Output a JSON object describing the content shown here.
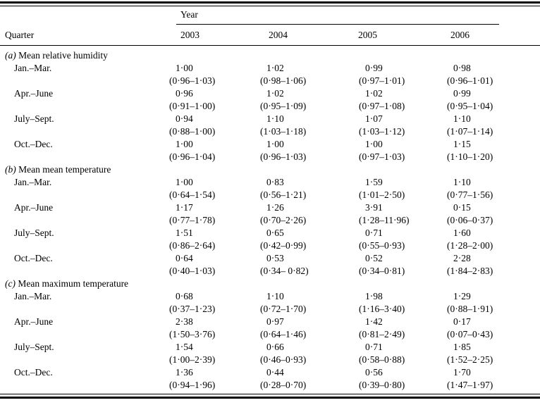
{
  "colors": {
    "text": "#000000",
    "background": "#ffffff",
    "rule": "#000000"
  },
  "header": {
    "year_label": "Year",
    "quarter_label": "Quarter",
    "years": [
      "2003",
      "2004",
      "2005",
      "2006"
    ]
  },
  "sections": [
    {
      "label": "(a)",
      "title": "Mean relative humidity",
      "rows": [
        {
          "quarter": "Jan.–Mar.",
          "cells": [
            {
              "value": "1·00",
              "ci": "(0·96–1·03)"
            },
            {
              "value": "1·02",
              "ci": "(0·98–1·06)"
            },
            {
              "value": "0·99",
              "ci": "(0·97–1·01)"
            },
            {
              "value": "0·98",
              "ci": "(0·96–1·01)"
            }
          ]
        },
        {
          "quarter": "Apr.–June",
          "cells": [
            {
              "value": "0·96",
              "ci": "(0·91–1·00)"
            },
            {
              "value": "1·02",
              "ci": "(0·95–1·09)"
            },
            {
              "value": "1·02",
              "ci": "(0·97–1·08)"
            },
            {
              "value": "0·99",
              "ci": "(0·95–1·04)"
            }
          ]
        },
        {
          "quarter": "July–Sept.",
          "cells": [
            {
              "value": "0·94",
              "ci": "(0·88–1·00)"
            },
            {
              "value": "1·10",
              "ci": "(1·03–1·18)"
            },
            {
              "value": "1·07",
              "ci": "(1·03–1·12)"
            },
            {
              "value": "1·10",
              "ci": "(1·07–1·14)"
            }
          ]
        },
        {
          "quarter": "Oct.–Dec.",
          "cells": [
            {
              "value": "1·00",
              "ci": "(0·96–1·04)"
            },
            {
              "value": "1·00",
              "ci": "(0·96–1·03)"
            },
            {
              "value": "1·00",
              "ci": "(0·97–1·03)"
            },
            {
              "value": "1·15",
              "ci": "(1·10–1·20)"
            }
          ]
        }
      ]
    },
    {
      "label": "(b)",
      "title": "Mean mean temperature",
      "rows": [
        {
          "quarter": "Jan.–Mar.",
          "cells": [
            {
              "value": "1·00",
              "ci": "(0·64–1·54)"
            },
            {
              "value": "0·83",
              "ci": "(0·56–1·21)"
            },
            {
              "value": "1·59",
              "ci": "(1·01–2·50)"
            },
            {
              "value": "1·10",
              "ci": "(0·77–1·56)"
            }
          ]
        },
        {
          "quarter": "Apr.–June",
          "cells": [
            {
              "value": "1·17",
              "ci": "(0·77–1·78)"
            },
            {
              "value": "1·26",
              "ci": "(0·70–2·26)"
            },
            {
              "value": "3·91",
              "ci": "(1·28–11·96)"
            },
            {
              "value": "0·15",
              "ci": "(0·06–0·37)"
            }
          ]
        },
        {
          "quarter": "July–Sept.",
          "cells": [
            {
              "value": "1·51",
              "ci": "(0·86–2·64)"
            },
            {
              "value": "0·65",
              "ci": "(0·42–0·99)"
            },
            {
              "value": "0·71",
              "ci": "(0·55–0·93)"
            },
            {
              "value": "1·60",
              "ci": "(1·28–2·00)"
            }
          ]
        },
        {
          "quarter": "Oct.–Dec.",
          "cells": [
            {
              "value": "0·64",
              "ci": "(0·40–1·03)"
            },
            {
              "value": "0·53",
              "ci": "(0·34– 0·82)"
            },
            {
              "value": "0·52",
              "ci": "(0·34–0·81)"
            },
            {
              "value": "2·28",
              "ci": "(1·84–2·83)"
            }
          ]
        }
      ]
    },
    {
      "label": "(c)",
      "title": "Mean maximum temperature",
      "rows": [
        {
          "quarter": "Jan.–Mar.",
          "cells": [
            {
              "value": "0·68",
              "ci": "(0·37–1·23)"
            },
            {
              "value": "1·10",
              "ci": "(0·72–1·70)"
            },
            {
              "value": "1·98",
              "ci": "(1·16–3·40)"
            },
            {
              "value": "1·29",
              "ci": "(0·88–1·91)"
            }
          ]
        },
        {
          "quarter": "Apr.–June",
          "cells": [
            {
              "value": "2·38",
              "ci": "(1·50–3·76)"
            },
            {
              "value": "0·97",
              "ci": "(0·64–1·46)"
            },
            {
              "value": "1·42",
              "ci": "(0·81–2·49)"
            },
            {
              "value": "0·17",
              "ci": "(0·07–0·43)"
            }
          ]
        },
        {
          "quarter": "July–Sept.",
          "cells": [
            {
              "value": "1·54",
              "ci": "(1·00–2·39)"
            },
            {
              "value": "0·66",
              "ci": "(0·46–0·93)"
            },
            {
              "value": "0·71",
              "ci": "(0·58–0·88)"
            },
            {
              "value": "1·85",
              "ci": "(1·52–2·25)"
            }
          ]
        },
        {
          "quarter": "Oct.–Dec.",
          "cells": [
            {
              "value": "1·36",
              "ci": "(0·94–1·96)"
            },
            {
              "value": "0·44",
              "ci": "(0·28–0·70)"
            },
            {
              "value": "0·56",
              "ci": "(0·39–0·80)"
            },
            {
              "value": "1·70",
              "ci": "(1·47–1·97)"
            }
          ]
        }
      ]
    }
  ]
}
